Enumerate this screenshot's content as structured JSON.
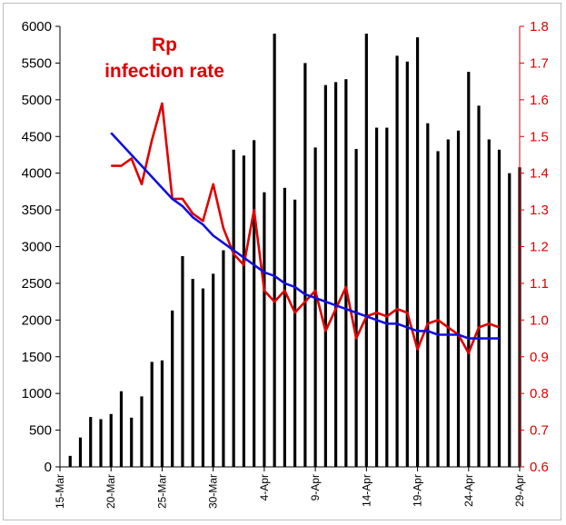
{
  "chart_data": {
    "type": "bar",
    "title": "",
    "xlabel": "",
    "ylabel": "",
    "ylim": [
      0,
      6000
    ],
    "y2lim": [
      0.6,
      1.8
    ],
    "grid": false,
    "annotations": [
      "Rp",
      "infection rate"
    ],
    "colors": {
      "bars": "#000000",
      "rp_line": "#e00000",
      "trend_line": "#1010e0",
      "right_axis": "#e00000"
    },
    "x_tick_labels": [
      "15-Mar",
      "20-Mar",
      "25-Mar",
      "30-Mar",
      "4-Apr",
      "9-Apr",
      "14-Apr",
      "19-Apr",
      "24-Apr",
      "29-Apr"
    ],
    "left_tick_labels": [
      "0",
      "500",
      "1000",
      "1500",
      "2000",
      "2500",
      "3000",
      "3500",
      "4000",
      "4500",
      "5000",
      "5500",
      "6000"
    ],
    "right_tick_labels": [
      "0.6",
      "0.7",
      "0.8",
      "0.9",
      "1.0",
      "1.1",
      "1.2",
      "1.3",
      "1.4",
      "1.5",
      "1.6",
      "1.7",
      "1.8"
    ],
    "bars": {
      "axis": "left",
      "start_day": 1,
      "values": [
        150,
        400,
        680,
        650,
        720,
        1030,
        670,
        960,
        1430,
        1450,
        2130,
        2870,
        2560,
        2430,
        2630,
        2950,
        4320,
        4240,
        4450,
        3740,
        5900,
        3800,
        3640,
        5500,
        4350,
        5200,
        5240,
        5280,
        4330,
        5900,
        4620,
        4620,
        5600,
        5520,
        5850,
        4680,
        4300,
        4460,
        4580,
        5380,
        4920,
        4460,
        4320,
        4000,
        4080
      ]
    },
    "series": [
      {
        "axis": "right",
        "start_day": 5,
        "values": [
          1.42,
          1.42,
          1.44,
          1.37,
          1.49,
          1.59,
          1.33,
          1.33,
          1.29,
          1.27,
          1.37,
          1.25,
          1.18,
          1.15,
          1.3,
          1.08,
          1.05,
          1.08,
          1.02,
          1.05,
          1.08,
          0.97,
          1.03,
          1.09,
          0.95,
          1.01,
          1.02,
          1.01,
          1.03,
          1.02,
          0.92,
          0.99,
          1.0,
          0.98,
          0.96,
          0.91,
          0.98,
          0.99,
          0.98
        ]
      },
      {
        "axis": "right",
        "start_day": 5,
        "values": [
          1.51,
          1.48,
          1.45,
          1.42,
          1.39,
          1.36,
          1.33,
          1.31,
          1.28,
          1.26,
          1.23,
          1.21,
          1.19,
          1.17,
          1.15,
          1.13,
          1.12,
          1.1,
          1.09,
          1.07,
          1.06,
          1.05,
          1.04,
          1.03,
          1.02,
          1.01,
          1.0,
          0.99,
          0.99,
          0.98,
          0.97,
          0.97,
          0.96,
          0.96,
          0.96,
          0.95,
          0.95,
          0.95,
          0.95
        ]
      }
    ]
  }
}
